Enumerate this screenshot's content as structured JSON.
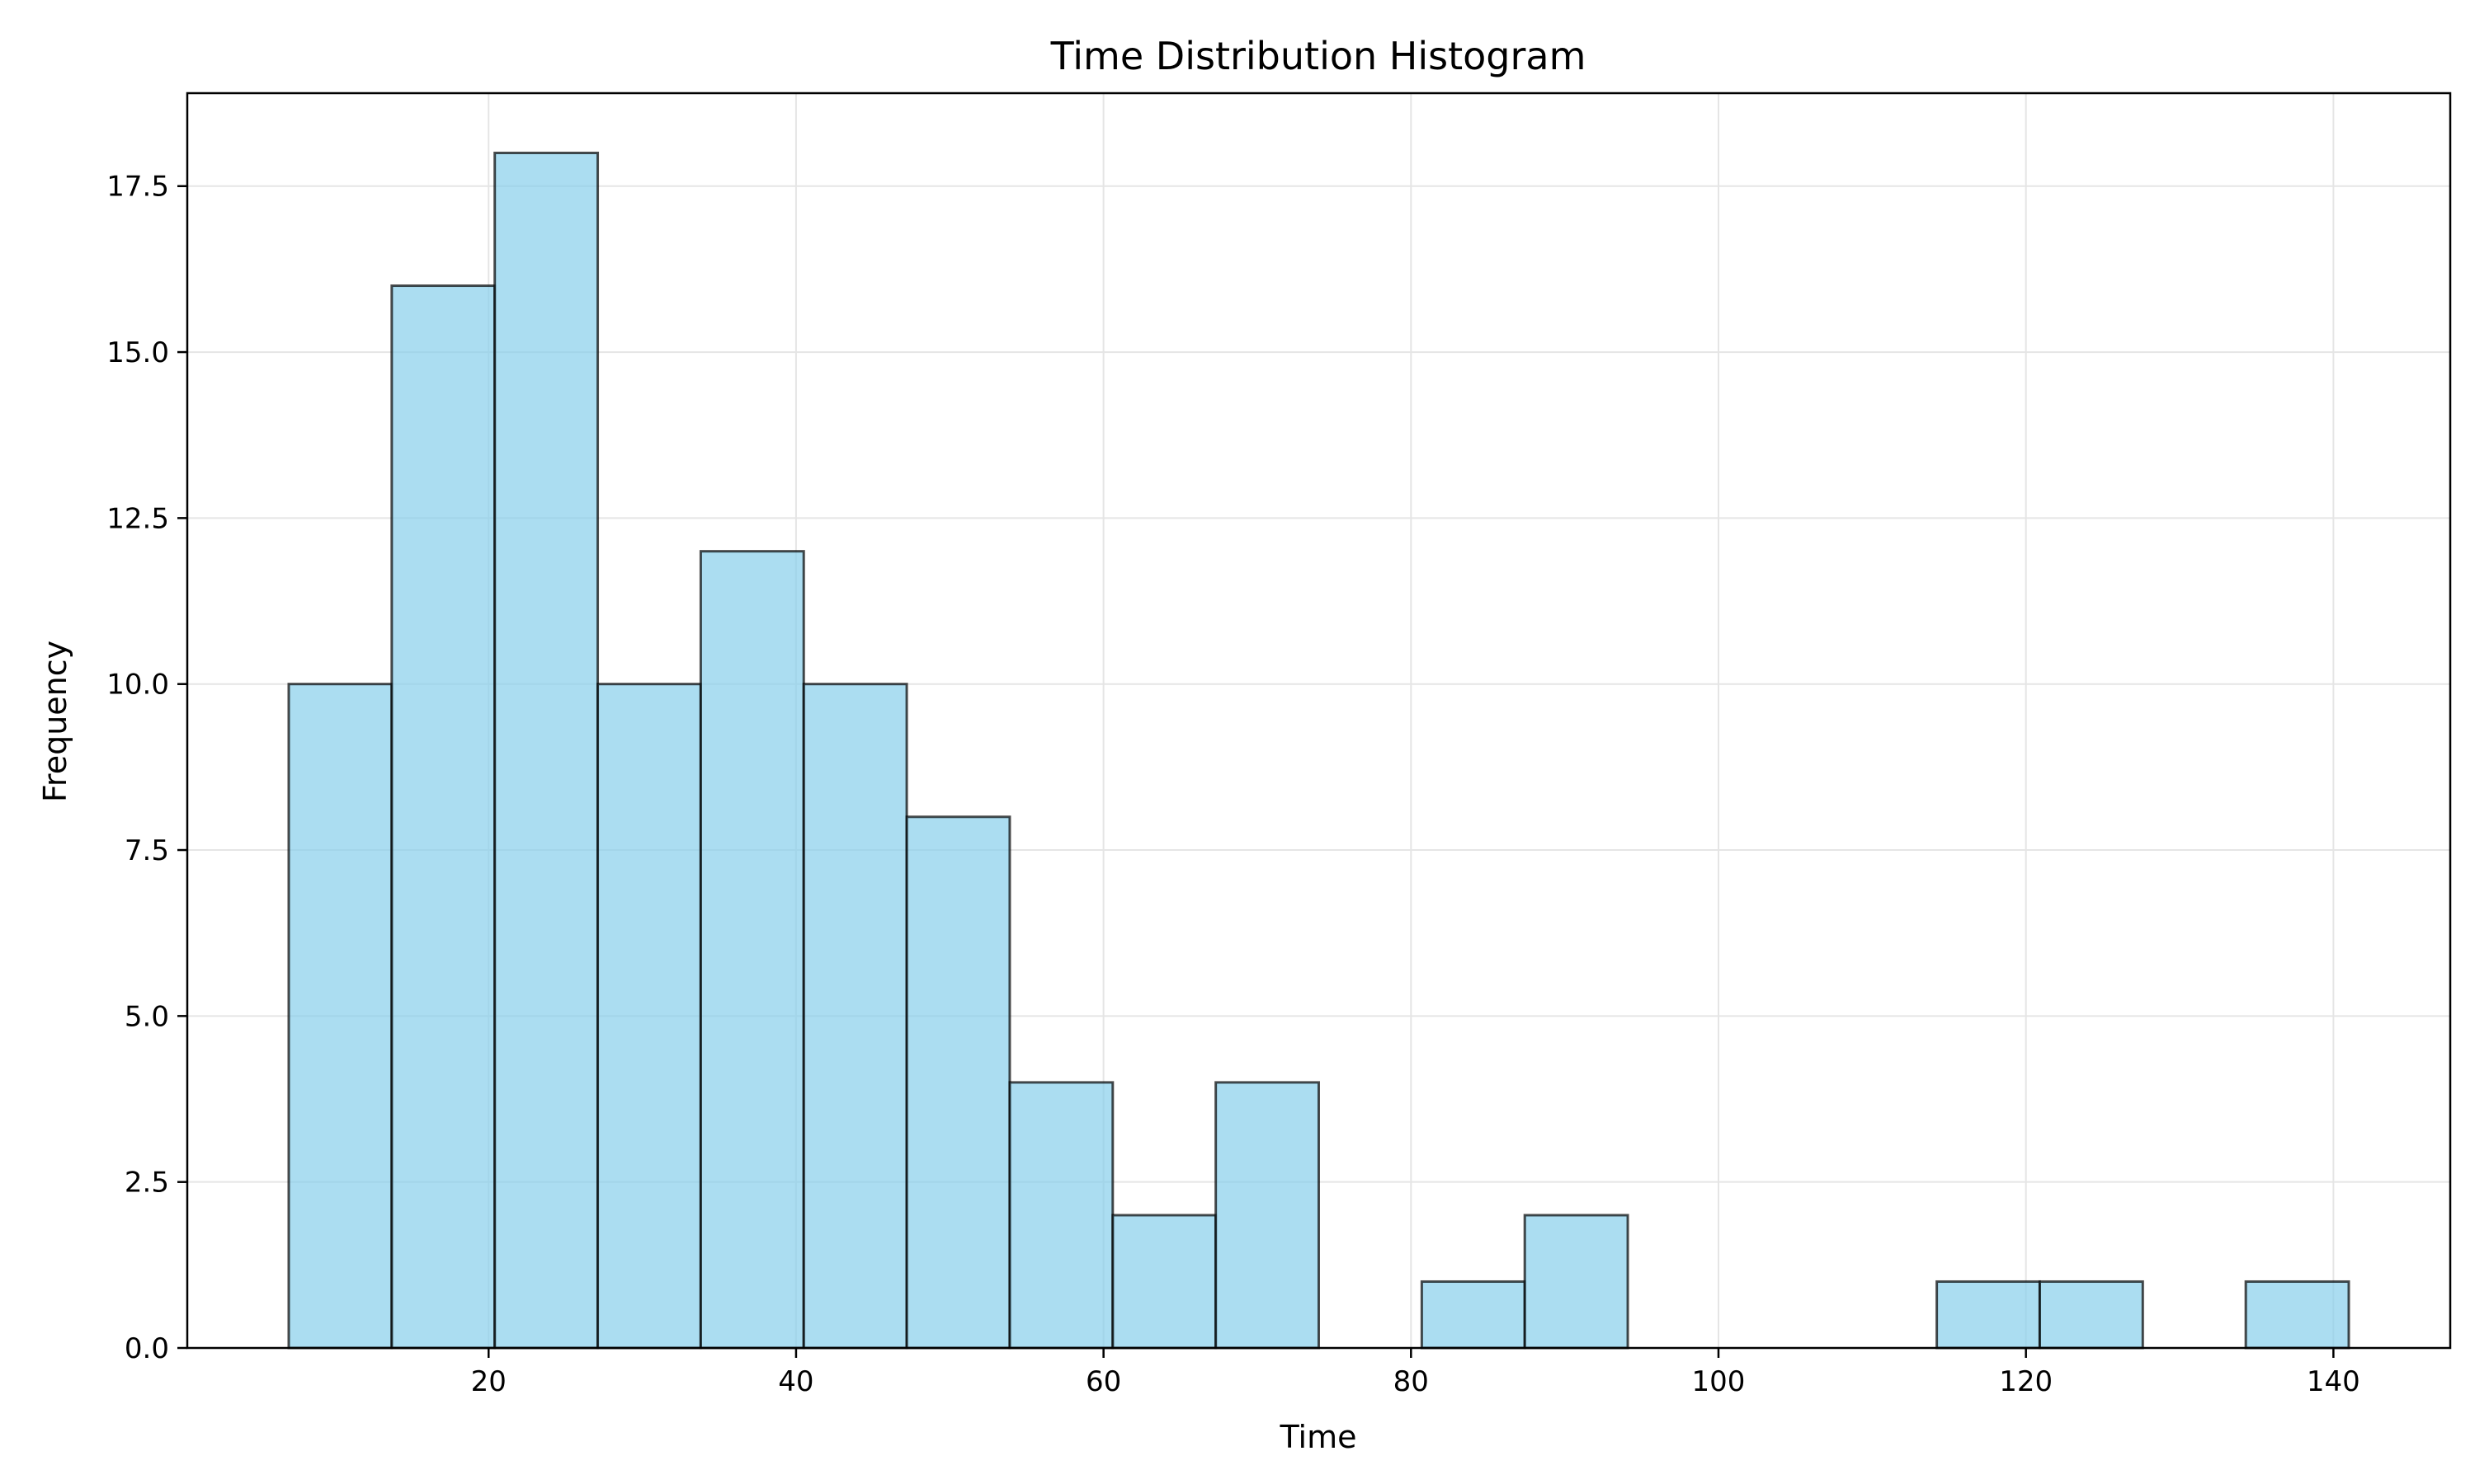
{
  "chart_data": {
    "type": "bar",
    "title": "Time Distribution Histogram",
    "xlabel": "Time",
    "ylabel": "Frequency",
    "xlim": [
      0.4,
      147.6
    ],
    "ylim": [
      0,
      18.9
    ],
    "x_ticks": [
      20,
      40,
      60,
      80,
      100,
      120,
      140
    ],
    "x_tick_labels": [
      "20",
      "40",
      "60",
      "80",
      "100",
      "120",
      "140"
    ],
    "y_ticks": [
      0,
      2.5,
      5,
      7.5,
      10,
      12.5,
      15,
      17.5
    ],
    "y_tick_labels": [
      "0.0",
      "2.5",
      "5.0",
      "7.5",
      "10.0",
      "12.5",
      "15.0",
      "17.5"
    ],
    "grid": true,
    "bin_edges": [
      7.0,
      13.7,
      20.4,
      27.1,
      33.8,
      40.5,
      47.2,
      53.9,
      60.6,
      67.3,
      74.0,
      80.7,
      87.4,
      94.1,
      100.8,
      107.5,
      114.2,
      120.9,
      127.6,
      134.3,
      141.0
    ],
    "values": [
      10,
      16,
      18,
      10,
      12,
      10,
      8,
      4,
      2,
      4,
      0,
      1,
      2,
      0,
      0,
      0,
      1,
      1,
      0,
      1
    ],
    "colors": {
      "bar_fill": "#87CEEB",
      "bar_edge": "#000000",
      "grid": "#e5e5e5",
      "axis": "#000000"
    }
  }
}
